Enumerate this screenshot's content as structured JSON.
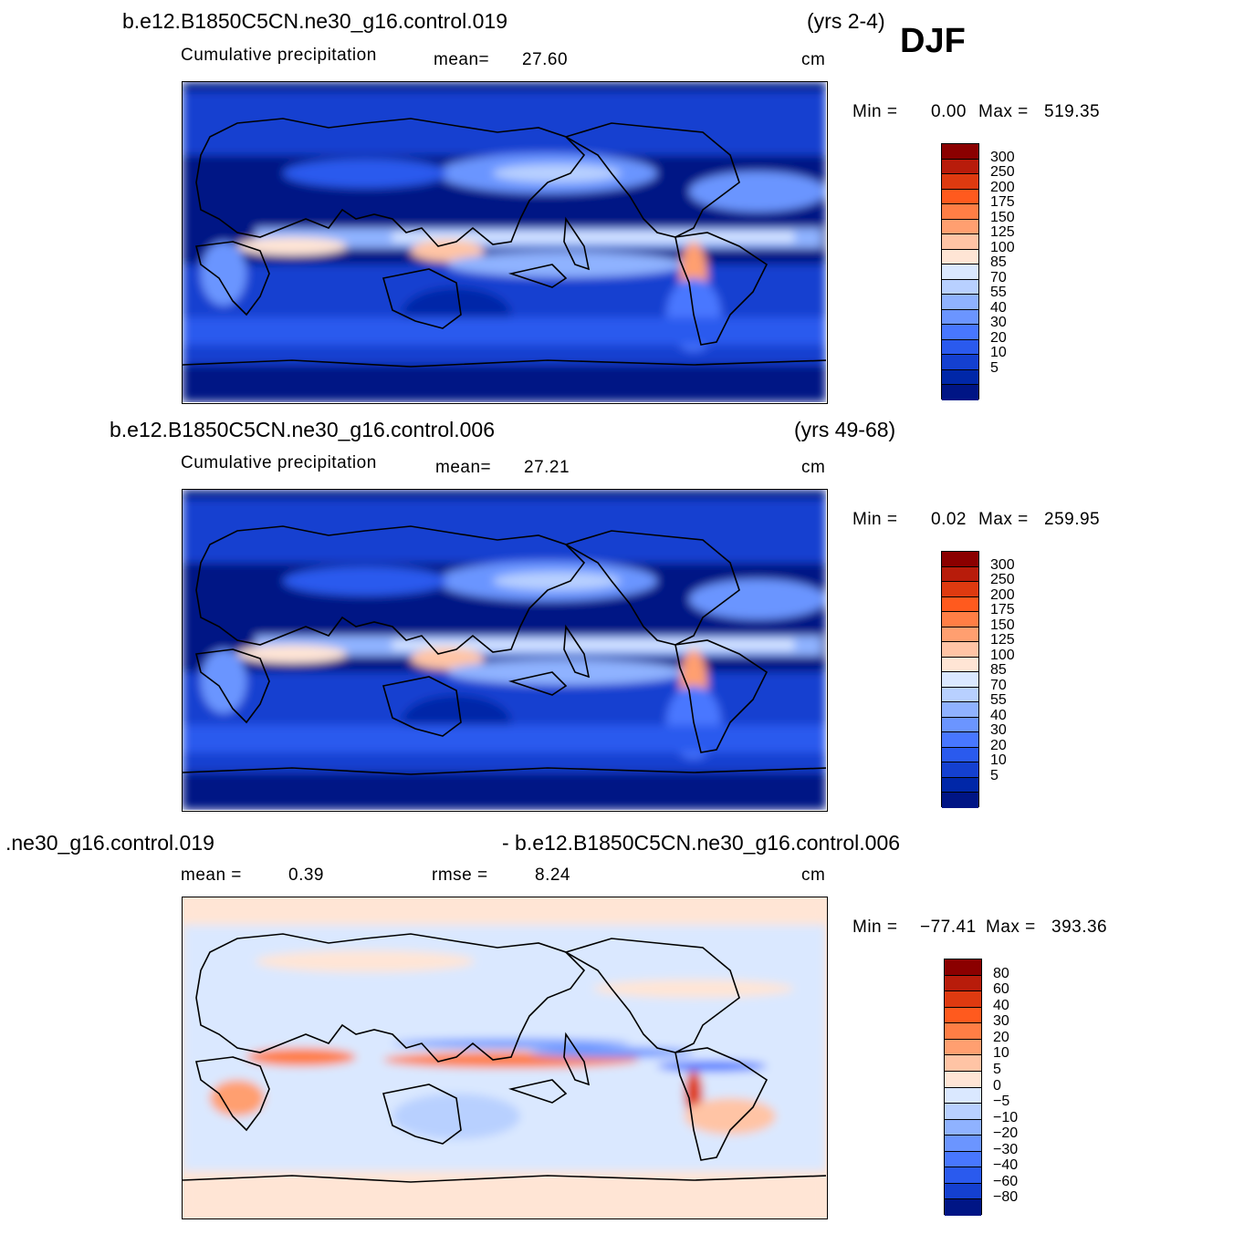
{
  "season": "DJF",
  "panels": [
    {
      "case": "b.e12.B1850C5CN.ne30_g16.control.019",
      "years": "(yrs 2-4)",
      "stats_label": "Cumulative precipitation",
      "mean_text": "mean=",
      "mean_value": "27.60",
      "units": "cm",
      "min_text": "Min =",
      "min_value": "0.00",
      "max_text": "Max =",
      "max_value": "519.35",
      "colorbar_labels": [
        "300",
        "250",
        "200",
        "175",
        "150",
        "125",
        "100",
        "85",
        "70",
        "55",
        "40",
        "30",
        "20",
        "10",
        "5"
      ]
    },
    {
      "case": "b.e12.B1850C5CN.ne30_g16.control.006",
      "years": "(yrs 49-68)",
      "stats_label": "Cumulative precipitation",
      "mean_text": "mean=",
      "mean_value": "27.21",
      "units": "cm",
      "min_text": "Min =",
      "min_value": "0.02",
      "max_text": "Max =",
      "max_value": "259.95",
      "colorbar_labels": [
        "300",
        "250",
        "200",
        "175",
        "150",
        "125",
        "100",
        "85",
        "70",
        "55",
        "40",
        "30",
        "20",
        "10",
        "5"
      ]
    },
    {
      "case_left": ".ne30_g16.control.019",
      "case_right": "- b.e12.B1850C5CN.ne30_g16.control.006",
      "mean_text": "mean =",
      "mean_value": "0.39",
      "rmse_text": "rmse =",
      "rmse_value": "8.24",
      "units": "cm",
      "min_text": "Min =",
      "min_value": "−77.41",
      "max_text": "Max =",
      "max_value": "393.36",
      "colorbar_labels": [
        "80",
        "60",
        "40",
        "30",
        "20",
        "10",
        "5",
        "0",
        "−5",
        "−10",
        "−20",
        "−30",
        "−40",
        "−60",
        "−80"
      ]
    }
  ],
  "colors": {
    "precip_scale": [
      "#8b0000",
      "#b81c0b",
      "#de3a10",
      "#ff5a1e",
      "#ff7e45",
      "#ff9f70",
      "#ffc4a5",
      "#ffe5d5",
      "#dae8ff",
      "#b8d0ff",
      "#8fb2ff",
      "#6b95ff",
      "#4877ff",
      "#2a5aee",
      "#1440d0",
      "#0027a8",
      "#001585"
    ],
    "diff_scale": [
      "#8b0000",
      "#b81c0b",
      "#de3a10",
      "#ff5a1e",
      "#ff7e45",
      "#ff9f70",
      "#ffc4a5",
      "#ffe5d5",
      "#dae8ff",
      "#b8d0ff",
      "#8fb2ff",
      "#6b95ff",
      "#4877ff",
      "#2a5aee",
      "#1440d0",
      "#001585"
    ]
  }
}
